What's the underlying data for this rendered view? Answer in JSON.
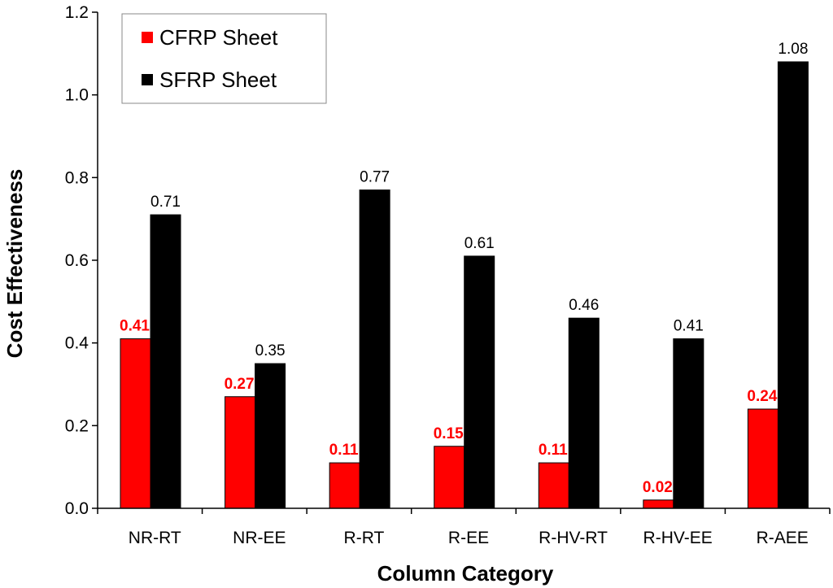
{
  "chart_data": {
    "type": "bar",
    "title": "",
    "xlabel": "Column Category",
    "ylabel": "Cost Effectiveness",
    "ylim": [
      0,
      1.2
    ],
    "ytick_values": [
      0,
      0.2,
      0.4,
      0.6,
      0.8,
      1.0,
      1.2
    ],
    "ytick_labels": [
      "0.0",
      "0.2",
      "0.4",
      "0.6",
      "0.8",
      "1.0",
      "1.2"
    ],
    "categories": [
      "NR-RT",
      "NR-EE",
      "R-RT",
      "R-EE",
      "R-HV-RT",
      "R-HV-EE",
      "R-AEE"
    ],
    "series": [
      {
        "name": "CFRP Sheet",
        "color": "#ff0000",
        "label_color": "#ff0000",
        "label_bold": true,
        "values": [
          0.41,
          0.27,
          0.11,
          0.15,
          0.11,
          0.02,
          0.24
        ],
        "value_labels": [
          "0.41",
          "0.27",
          "0.11",
          "0.15",
          "0.11",
          "0.02",
          "0.24"
        ]
      },
      {
        "name": "SFRP Sheet",
        "color": "#000000",
        "label_color": "#000000",
        "label_bold": false,
        "values": [
          0.71,
          0.35,
          0.77,
          0.61,
          0.46,
          0.41,
          1.08
        ],
        "value_labels": [
          "0.71",
          "0.35",
          "0.77",
          "0.61",
          "0.46",
          "0.41",
          "1.08"
        ]
      }
    ],
    "legend_position": "top-left",
    "grid": false
  }
}
